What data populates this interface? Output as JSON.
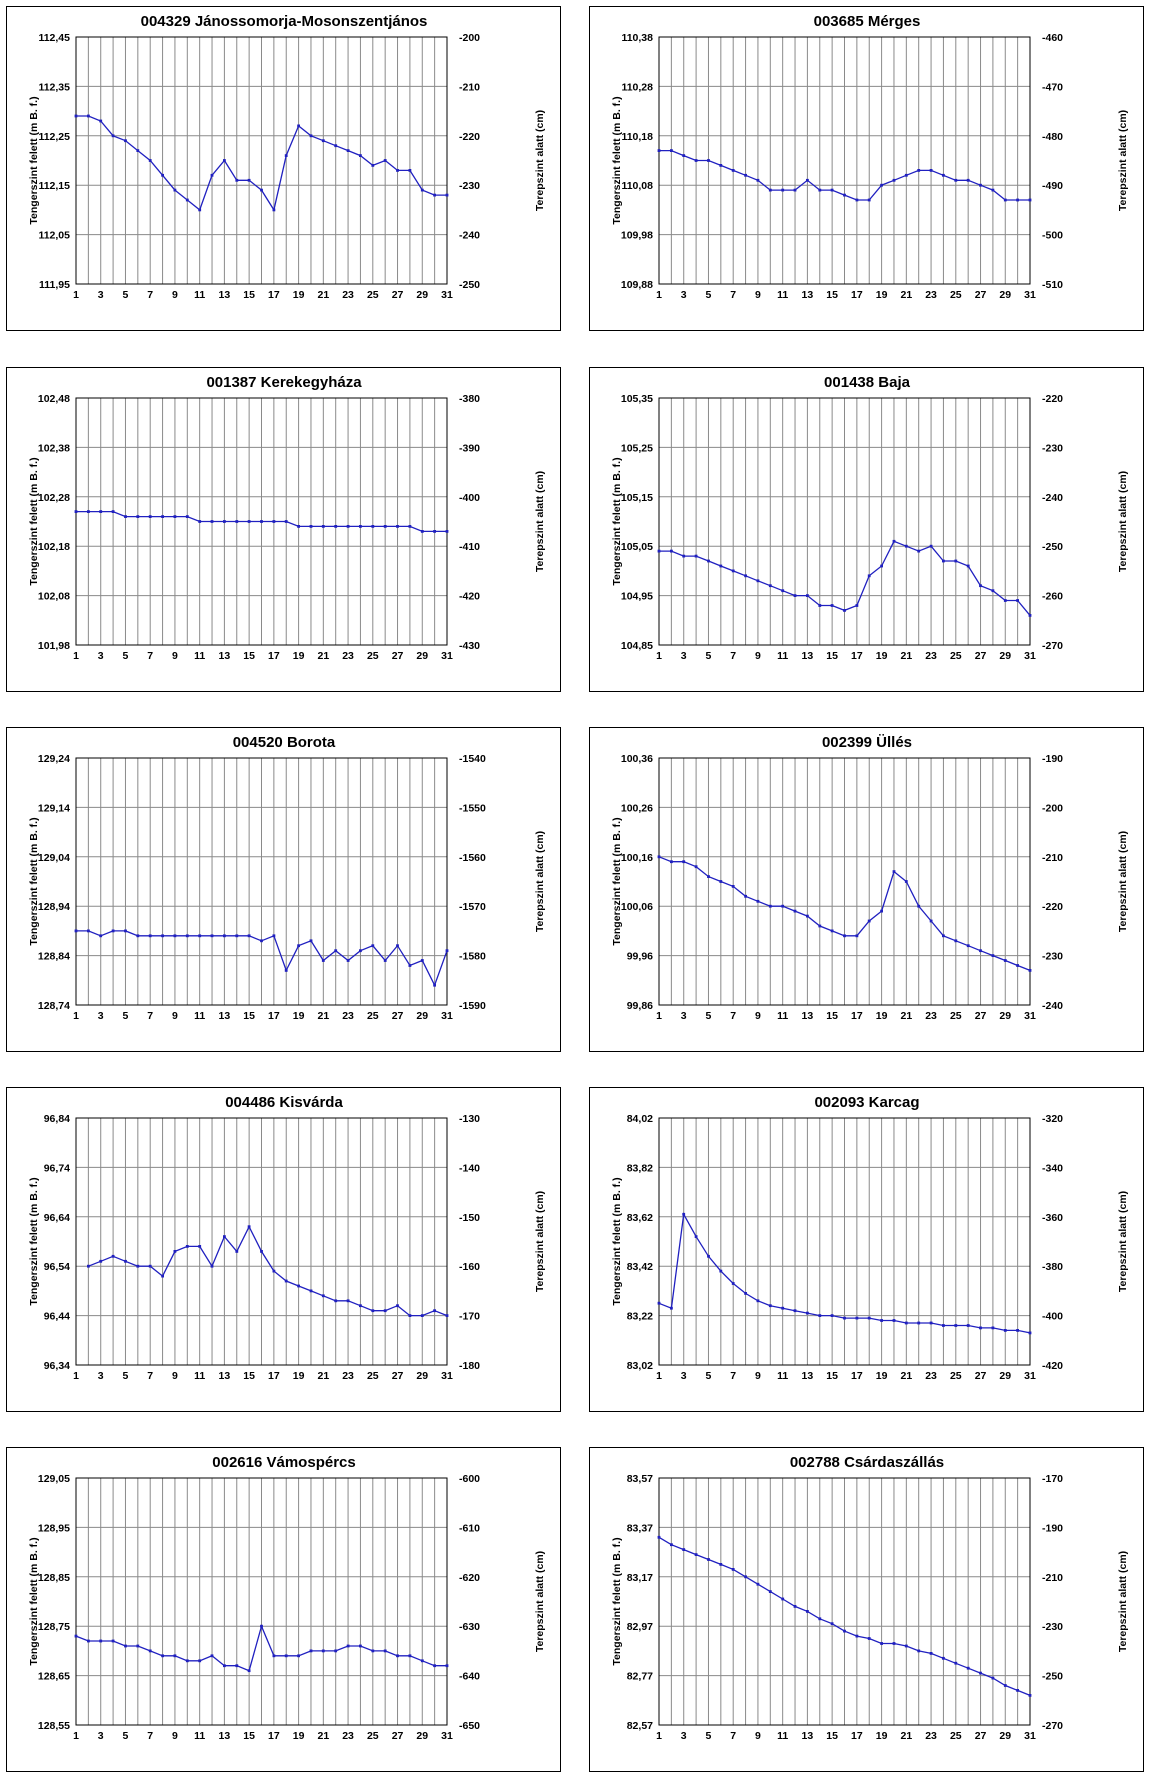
{
  "colors": {
    "line": "#2020c0",
    "grid": "#8a8a8a",
    "border": "#000000"
  },
  "chart_data": [
    {
      "type": "line",
      "title": "004329 Jánossomorja-Mosonszentjános",
      "ylabel": "Tengerszint felett (m B. f.)",
      "y2label": "Terepszint alatt (cm)",
      "yticks": [
        "111,95",
        "112,05",
        "112,15",
        "112,25",
        "112,35",
        "112,45"
      ],
      "ylim": [
        111.95,
        112.45
      ],
      "y2ticks": [
        "-250",
        "-240",
        "-230",
        "-220",
        "-210",
        "-200"
      ],
      "xticks": [
        "1",
        "3",
        "5",
        "7",
        "9",
        "11",
        "13",
        "15",
        "17",
        "19",
        "21",
        "23",
        "25",
        "27",
        "29",
        "31"
      ],
      "x": [
        1,
        2,
        3,
        4,
        5,
        6,
        7,
        8,
        9,
        10,
        11,
        12,
        13,
        14,
        15,
        16,
        17,
        18,
        19,
        20,
        21,
        22,
        23,
        24,
        25,
        26,
        27,
        28,
        29,
        30,
        31
      ],
      "y": [
        112.29,
        112.29,
        112.28,
        112.25,
        112.24,
        112.22,
        112.2,
        112.17,
        112.14,
        112.12,
        112.1,
        112.17,
        112.2,
        112.16,
        112.16,
        112.14,
        112.1,
        112.21,
        112.27,
        112.25,
        112.24,
        112.23,
        112.22,
        112.21,
        112.19,
        112.2,
        112.18,
        112.18,
        112.14,
        112.13,
        112.13
      ]
    },
    {
      "type": "line",
      "title": "003685 Mérges",
      "ylabel": "Tengerszint felett (m B. f.)",
      "y2label": "Terepszint alatt (cm)",
      "yticks": [
        "109,88",
        "109,98",
        "110,08",
        "110,18",
        "110,28",
        "110,38"
      ],
      "ylim": [
        109.88,
        110.38
      ],
      "y2ticks": [
        "-510",
        "-500",
        "-490",
        "-480",
        "-470",
        "-460"
      ],
      "xticks": [
        "1",
        "3",
        "5",
        "7",
        "9",
        "11",
        "13",
        "15",
        "17",
        "19",
        "21",
        "23",
        "25",
        "27",
        "29",
        "31"
      ],
      "x": [
        1,
        2,
        3,
        4,
        5,
        6,
        7,
        8,
        9,
        10,
        11,
        12,
        13,
        14,
        15,
        16,
        17,
        18,
        19,
        20,
        21,
        22,
        23,
        24,
        25,
        26,
        27,
        28,
        29,
        30,
        31
      ],
      "y": [
        110.15,
        110.15,
        110.14,
        110.13,
        110.13,
        110.12,
        110.11,
        110.1,
        110.09,
        110.07,
        110.07,
        110.07,
        110.09,
        110.07,
        110.07,
        110.06,
        110.05,
        110.05,
        110.08,
        110.09,
        110.1,
        110.11,
        110.11,
        110.1,
        110.09,
        110.09,
        110.08,
        110.07,
        110.05,
        110.05,
        110.05
      ]
    },
    {
      "type": "line",
      "title": "001387 Kerekegyháza",
      "ylabel": "Tengerszint felett (m B. f.)",
      "y2label": "Terepszint alatt (cm)",
      "yticks": [
        "101,98",
        "102,08",
        "102,18",
        "102,28",
        "102,38",
        "102,48"
      ],
      "ylim": [
        101.98,
        102.48
      ],
      "y2ticks": [
        "-430",
        "-420",
        "-410",
        "-400",
        "-390",
        "-380"
      ],
      "xticks": [
        "1",
        "3",
        "5",
        "7",
        "9",
        "11",
        "13",
        "15",
        "17",
        "19",
        "21",
        "23",
        "25",
        "27",
        "29",
        "31"
      ],
      "x": [
        1,
        2,
        3,
        4,
        5,
        6,
        7,
        8,
        9,
        10,
        11,
        12,
        13,
        14,
        15,
        16,
        17,
        18,
        19,
        20,
        21,
        22,
        23,
        24,
        25,
        26,
        27,
        28,
        29,
        30,
        31
      ],
      "y": [
        102.25,
        102.25,
        102.25,
        102.25,
        102.24,
        102.24,
        102.24,
        102.24,
        102.24,
        102.24,
        102.23,
        102.23,
        102.23,
        102.23,
        102.23,
        102.23,
        102.23,
        102.23,
        102.22,
        102.22,
        102.22,
        102.22,
        102.22,
        102.22,
        102.22,
        102.22,
        102.22,
        102.22,
        102.21,
        102.21,
        102.21
      ]
    },
    {
      "type": "line",
      "title": "001438 Baja",
      "ylabel": "Tengerszint felett (m B. f.)",
      "y2label": "Terepszint alatt (cm)",
      "yticks": [
        "104,85",
        "104,95",
        "105,05",
        "105,15",
        "105,25",
        "105,35"
      ],
      "ylim": [
        104.85,
        105.35
      ],
      "y2ticks": [
        "-270",
        "-260",
        "-250",
        "-240",
        "-230",
        "-220"
      ],
      "xticks": [
        "1",
        "3",
        "5",
        "7",
        "9",
        "11",
        "13",
        "15",
        "17",
        "19",
        "21",
        "23",
        "25",
        "27",
        "29",
        "31"
      ],
      "x": [
        1,
        2,
        3,
        4,
        5,
        6,
        7,
        8,
        9,
        10,
        11,
        12,
        13,
        14,
        15,
        16,
        17,
        18,
        19,
        20,
        21,
        22,
        23,
        24,
        25,
        26,
        27,
        28,
        29,
        30,
        31
      ],
      "y": [
        105.04,
        105.04,
        105.03,
        105.03,
        105.02,
        105.01,
        105.0,
        104.99,
        104.98,
        104.97,
        104.96,
        104.95,
        104.95,
        104.93,
        104.93,
        104.92,
        104.93,
        104.99,
        105.01,
        105.06,
        105.05,
        105.04,
        105.05,
        105.02,
        105.02,
        105.01,
        104.97,
        104.96,
        104.94,
        104.94,
        104.91
      ]
    },
    {
      "type": "line",
      "title": "004520 Borota",
      "ylabel": "Tengerszint felett (m B. f.)",
      "y2label": "Terepszint alatt (cm)",
      "yticks": [
        "128,74",
        "128,84",
        "128,94",
        "129,04",
        "129,14",
        "129,24"
      ],
      "ylim": [
        128.74,
        129.24
      ],
      "y2ticks": [
        "-1590",
        "-1580",
        "-1570",
        "-1560",
        "-1550",
        "-1540"
      ],
      "xticks": [
        "1",
        "3",
        "5",
        "7",
        "9",
        "11",
        "13",
        "15",
        "17",
        "19",
        "21",
        "23",
        "25",
        "27",
        "29",
        "31"
      ],
      "x": [
        1,
        2,
        3,
        4,
        5,
        6,
        7,
        8,
        9,
        10,
        11,
        12,
        13,
        14,
        15,
        16,
        17,
        18,
        19,
        20,
        21,
        22,
        23,
        24,
        25,
        26,
        27,
        28,
        29,
        30,
        31
      ],
      "y": [
        128.89,
        128.89,
        128.88,
        128.89,
        128.89,
        128.88,
        128.88,
        128.88,
        128.88,
        128.88,
        128.88,
        128.88,
        128.88,
        128.88,
        128.88,
        128.87,
        128.88,
        128.81,
        128.86,
        128.87,
        128.83,
        128.85,
        128.83,
        128.85,
        128.86,
        128.83,
        128.86,
        128.82,
        128.83,
        128.78,
        128.85
      ]
    },
    {
      "type": "line",
      "title": "002399 Üllés",
      "ylabel": "Tengerszint felett (m B. f.)",
      "y2label": "Terepszint alatt (cm)",
      "yticks": [
        "99,86",
        "99,96",
        "100,06",
        "100,16",
        "100,26",
        "100,36"
      ],
      "ylim": [
        99.86,
        100.36
      ],
      "y2ticks": [
        "-240",
        "-230",
        "-220",
        "-210",
        "-200",
        "-190"
      ],
      "xticks": [
        "1",
        "3",
        "5",
        "7",
        "9",
        "11",
        "13",
        "15",
        "17",
        "19",
        "21",
        "23",
        "25",
        "27",
        "29",
        "31"
      ],
      "x": [
        1,
        2,
        3,
        4,
        5,
        6,
        7,
        8,
        9,
        10,
        11,
        12,
        13,
        14,
        15,
        16,
        17,
        18,
        19,
        20,
        21,
        22,
        23,
        24,
        25,
        26,
        27,
        28,
        29,
        30,
        31
      ],
      "y": [
        100.16,
        100.15,
        100.15,
        100.14,
        100.12,
        100.11,
        100.1,
        100.08,
        100.07,
        100.06,
        100.06,
        100.05,
        100.04,
        100.02,
        100.01,
        100.0,
        100.0,
        100.03,
        100.05,
        100.13,
        100.11,
        100.06,
        100.03,
        100.0,
        99.99,
        99.98,
        99.97,
        99.96,
        99.95,
        99.94,
        99.93
      ]
    },
    {
      "type": "line",
      "title": "004486 Kisvárda",
      "ylabel": "Tengerszint felett (m B. f.)",
      "y2label": "Terepszint alatt (cm)",
      "yticks": [
        "96,34",
        "96,44",
        "96,54",
        "96,64",
        "96,74",
        "96,84"
      ],
      "ylim": [
        96.34,
        96.84
      ],
      "y2ticks": [
        "-180",
        "-170",
        "-160",
        "-150",
        "-140",
        "-130"
      ],
      "xticks": [
        "1",
        "3",
        "5",
        "7",
        "9",
        "11",
        "13",
        "15",
        "17",
        "19",
        "21",
        "23",
        "25",
        "27",
        "29",
        "31"
      ],
      "x": [
        2,
        3,
        4,
        5,
        6,
        7,
        8,
        9,
        10,
        11,
        12,
        13,
        14,
        15,
        16,
        17,
        18,
        19,
        20,
        21,
        22,
        23,
        24,
        25,
        26,
        27,
        28,
        29,
        30,
        31
      ],
      "y": [
        96.54,
        96.55,
        96.56,
        96.55,
        96.54,
        96.54,
        96.52,
        96.57,
        96.58,
        96.58,
        96.54,
        96.6,
        96.57,
        96.62,
        96.57,
        96.53,
        96.51,
        96.5,
        96.49,
        96.48,
        96.47,
        96.47,
        96.46,
        96.45,
        96.45,
        96.46,
        96.44,
        96.44,
        96.45,
        96.44
      ]
    },
    {
      "type": "line",
      "title": "002093 Karcag",
      "ylabel": "Tengerszint felett (m B. f.)",
      "y2label": "Terepszint alatt (cm)",
      "yticks": [
        "83,02",
        "83,22",
        "83,42",
        "83,62",
        "83,82",
        "84,02"
      ],
      "ylim": [
        83.02,
        84.02
      ],
      "y2ticks": [
        "-420",
        "-400",
        "-380",
        "-360",
        "-340",
        "-320"
      ],
      "xticks": [
        "1",
        "3",
        "5",
        "7",
        "9",
        "11",
        "13",
        "15",
        "17",
        "19",
        "21",
        "23",
        "25",
        "27",
        "29",
        "31"
      ],
      "x": [
        1,
        2,
        3,
        4,
        5,
        6,
        7,
        8,
        9,
        10,
        11,
        12,
        13,
        14,
        15,
        16,
        17,
        18,
        19,
        20,
        21,
        22,
        23,
        24,
        25,
        26,
        27,
        28,
        29,
        30,
        31
      ],
      "y": [
        83.27,
        83.25,
        83.63,
        83.54,
        83.46,
        83.4,
        83.35,
        83.31,
        83.28,
        83.26,
        83.25,
        83.24,
        83.23,
        83.22,
        83.22,
        83.21,
        83.21,
        83.21,
        83.2,
        83.2,
        83.19,
        83.19,
        83.19,
        83.18,
        83.18,
        83.18,
        83.17,
        83.17,
        83.16,
        83.16,
        83.15
      ]
    },
    {
      "type": "line",
      "title": "002616 Vámospércs",
      "ylabel": "Tengerszint felett (m B. f.)",
      "y2label": "Terepszint alatt (cm)",
      "yticks": [
        "128,55",
        "128,65",
        "128,75",
        "128,85",
        "128,95",
        "129,05"
      ],
      "ylim": [
        128.55,
        129.05
      ],
      "y2ticks": [
        "-650",
        "-640",
        "-630",
        "-620",
        "-610",
        "-600"
      ],
      "xticks": [
        "1",
        "3",
        "5",
        "7",
        "9",
        "11",
        "13",
        "15",
        "17",
        "19",
        "21",
        "23",
        "25",
        "27",
        "29",
        "31"
      ],
      "x": [
        1,
        2,
        3,
        4,
        5,
        6,
        7,
        8,
        9,
        10,
        11,
        12,
        13,
        14,
        15,
        16,
        17,
        18,
        19,
        20,
        21,
        22,
        23,
        24,
        25,
        26,
        27,
        28,
        29,
        30,
        31
      ],
      "y": [
        128.73,
        128.72,
        128.72,
        128.72,
        128.71,
        128.71,
        128.7,
        128.69,
        128.69,
        128.68,
        128.68,
        128.69,
        128.67,
        128.67,
        128.66,
        128.75,
        128.69,
        128.69,
        128.69,
        128.7,
        128.7,
        128.7,
        128.71,
        128.71,
        128.7,
        128.7,
        128.69,
        128.69,
        128.68,
        128.67,
        128.67
      ]
    },
    {
      "type": "line",
      "title": "002788 Csárdaszállás",
      "ylabel": "Tengerszint felett (m B. f.)",
      "y2label": "Terepszint alatt (cm)",
      "yticks": [
        "82,57",
        "82,77",
        "82,97",
        "83,17",
        "83,37",
        "83,57"
      ],
      "ylim": [
        82.57,
        83.57
      ],
      "y2ticks": [
        "-270",
        "-250",
        "-230",
        "-210",
        "-190",
        "-170"
      ],
      "xticks": [
        "1",
        "3",
        "5",
        "7",
        "9",
        "11",
        "13",
        "15",
        "17",
        "19",
        "21",
        "23",
        "25",
        "27",
        "29",
        "31"
      ],
      "x": [
        1,
        2,
        3,
        4,
        5,
        6,
        7,
        8,
        9,
        10,
        11,
        12,
        13,
        14,
        15,
        16,
        17,
        18,
        19,
        20,
        21,
        22,
        23,
        24,
        25,
        26,
        27,
        28,
        29,
        30,
        31
      ],
      "y": [
        83.33,
        83.3,
        83.28,
        83.26,
        83.24,
        83.22,
        83.2,
        83.17,
        83.14,
        83.11,
        83.08,
        83.05,
        83.03,
        83.0,
        82.98,
        82.95,
        82.93,
        82.92,
        82.9,
        82.9,
        82.89,
        82.87,
        82.86,
        82.84,
        82.82,
        82.8,
        82.78,
        82.76,
        82.73,
        82.71,
        82.69
      ]
    }
  ]
}
